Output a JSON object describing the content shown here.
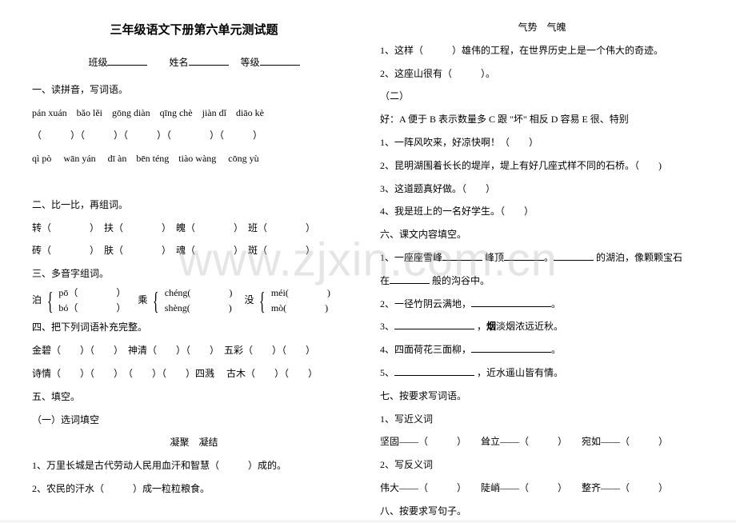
{
  "title": "三年级语文下册第六单元测试题",
  "info": {
    "class_label": "班级",
    "name_label": "姓名",
    "grade_label": "等级"
  },
  "left": {
    "s1": "一、读拼音，写词语。",
    "pinyin1": "pán xuán　bǎo lěi　gōng diàn　qīng chè　jiàn dǐ　diāo kè",
    "paren1": "（　　　）（　　　）（　　　）（　　　　）（　　　）",
    "pinyin2": "qì pò　 wān yán　 dī àn　bēn téng　tiào wàng　 cōng yù",
    "paren2": "　",
    "s2": "二、比一比，再组词。",
    "row2a": "转（　　　　）　扶（　　　　）　魄（　　　　）　班（　　　　）",
    "row2b": "砖（　　　　）　肤（　　　　）　魂（　　　　）　斑（　　　　）",
    "s3": "三、多音字组词。",
    "m_po": "pō（　　　　）",
    "m_bo": "bó（　　　　）",
    "m_bo_char": "泊",
    "m_cheng": "chéng(　　　　)",
    "m_sheng": "shèng(　　　　)",
    "m_cheng_char": "乘",
    "m_mei": "méi(　　　　)",
    "m_mo": "mò(　　　　)",
    "m_mei_char": "没",
    "s4": "四、把下列词语补充完整。",
    "row4a": "金碧（　　）（　　）　神清（　　）（　　）　五彩（　　）（　　）",
    "row4b": "诗情（　　）（　　）　（　　）（　　）四溅　 古木（　　）（　　）",
    "s5": "五、填空。",
    "s5a": "（一）选词填空",
    "s5a_words": "凝聚　凝结",
    "s5a_1": "1、万里长城是古代劳动人民用血汗和智慧（　　　）成的。",
    "s5a_2": "2、农民的汗水（　　　）成一粒粒粮食。"
  },
  "right": {
    "s5b_words": "气势　气魄",
    "s5b_1": "1、这样（　　　）雄伟的工程，在世界历史上是一个伟大的奇迹。",
    "s5b_2": "2、这座山很有（　　　）。",
    "s5c": "（二）",
    "s5c_opts": "好：A 便于 B 表示数量多 C 跟 \"坏\" 相反 D 容易 E 很、特别",
    "s5c_1": "1、一阵风吹来，好凉快啊！（　　）",
    "s5c_2": "2、昆明湖围着长长的堤岸，堤上有好几座式样不同的石桥。（　　)",
    "s5c_3": "3、这道题真好做。（　　）",
    "s5c_4": "4、我是班上的一名好学生。（　　）",
    "s6": "六、课文内容填空。",
    "s6_1a": "1、一座座雪峰",
    "s6_1b": "峰顶",
    "s6_1c": "的湖泊，像颗颗宝石",
    "s6_1d": "在",
    "s6_1e": "般的沟谷中。",
    "s6_2": "2、一径竹阴云满地，",
    "s6_3a": "3、",
    "s6_3b": "，",
    "s6_3b_bold": "烟",
    "s6_3c": "淡烟浓远近秋。",
    "s6_4": "4、四面荷花三面柳，",
    "s6_5a": "5、",
    "s6_5b": "，近水遥山皆有情。",
    "s7": "七、按要求写词语。",
    "s7_1": "1、写近义词",
    "s7_1_row": "坚固——（　　　）　　耸立——（　　　）　　宛如——（　　　）",
    "s7_2": "2、写反义词",
    "s7_2_row": "伟大——（　　　）　　陡峭——（　　　）　　整齐——（　　　）",
    "s8": "八、按要求写句子。"
  },
  "watermark": "www.zjxin.com.cn"
}
